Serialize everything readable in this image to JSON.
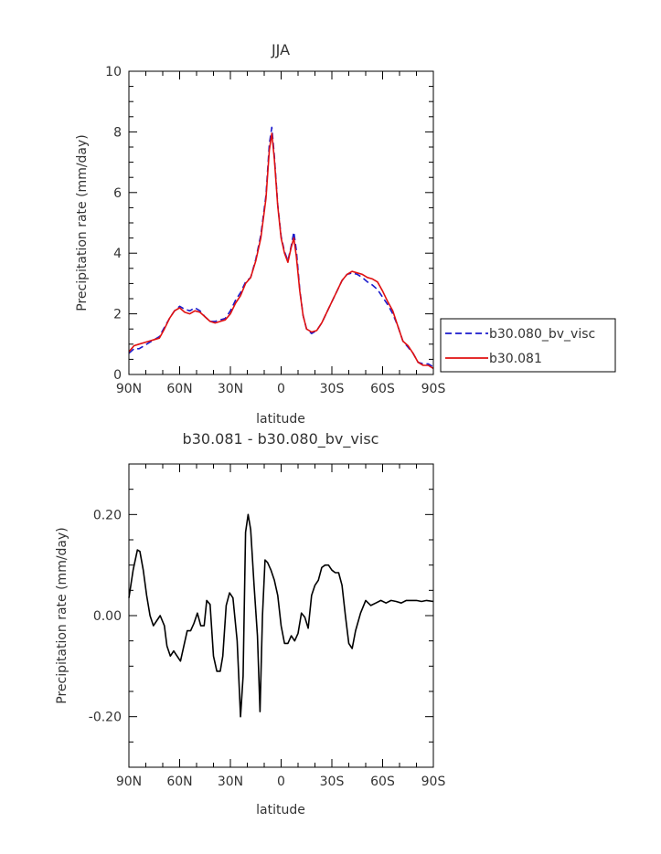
{
  "chart_data": [
    {
      "type": "line",
      "title": "JJA",
      "xlabel": "latitude",
      "ylabel": "Precipitation rate (mm/day)",
      "xlim": [
        90,
        -90
      ],
      "ylim": [
        0,
        10
      ],
      "xticks": [
        90,
        60,
        30,
        0,
        -30,
        -60,
        -90
      ],
      "xticklabels": [
        "90N",
        "60N",
        "30N",
        "0",
        "30S",
        "60S",
        "90S"
      ],
      "yticks": [
        0,
        2,
        4,
        6,
        8,
        10
      ],
      "yticklabels": [
        "0",
        "2",
        "4",
        "6",
        "8",
        "10"
      ],
      "legend_position": "right",
      "series": [
        {
          "name": "b30.080_bv_visc",
          "color": "#1a1acc",
          "dash": "dashed",
          "points": [
            [
              90,
              0.7
            ],
            [
              87,
              0.85
            ],
            [
              84,
              0.85
            ],
            [
              81,
              0.95
            ],
            [
              78,
              1.05
            ],
            [
              75,
              1.15
            ],
            [
              72,
              1.25
            ],
            [
              69,
              1.55
            ],
            [
              66,
              1.85
            ],
            [
              63,
              2.1
            ],
            [
              60,
              2.25
            ],
            [
              57,
              2.15
            ],
            [
              54,
              2.1
            ],
            [
              51,
              2.2
            ],
            [
              48,
              2.1
            ],
            [
              45,
              1.9
            ],
            [
              42,
              1.75
            ],
            [
              39,
              1.75
            ],
            [
              36,
              1.8
            ],
            [
              33,
              1.85
            ],
            [
              30,
              2.1
            ],
            [
              27,
              2.45
            ],
            [
              24,
              2.7
            ],
            [
              21,
              3.05
            ],
            [
              18,
              3.2
            ],
            [
              15,
              3.8
            ],
            [
              12,
              4.6
            ],
            [
              9,
              5.9
            ],
            [
              7,
              7.6
            ],
            [
              5.5,
              8.15
            ],
            [
              4,
              7.2
            ],
            [
              2,
              5.6
            ],
            [
              0,
              4.55
            ],
            [
              -2,
              4.05
            ],
            [
              -4,
              3.75
            ],
            [
              -6,
              4.25
            ],
            [
              -7.5,
              4.7
            ],
            [
              -9,
              4.1
            ],
            [
              -11,
              2.8
            ],
            [
              -13,
              1.95
            ],
            [
              -15,
              1.5
            ],
            [
              -18,
              1.35
            ],
            [
              -21,
              1.45
            ],
            [
              -24,
              1.7
            ],
            [
              -27,
              2.05
            ],
            [
              -30,
              2.4
            ],
            [
              -33,
              2.75
            ],
            [
              -36,
              3.1
            ],
            [
              -39,
              3.3
            ],
            [
              -42,
              3.35
            ],
            [
              -45,
              3.3
            ],
            [
              -48,
              3.2
            ],
            [
              -51,
              3.05
            ],
            [
              -54,
              2.95
            ],
            [
              -57,
              2.8
            ],
            [
              -60,
              2.55
            ],
            [
              -63,
              2.3
            ],
            [
              -66,
              2.0
            ],
            [
              -69,
              1.6
            ],
            [
              -72,
              1.1
            ],
            [
              -75,
              0.9
            ],
            [
              -78,
              0.7
            ],
            [
              -81,
              0.4
            ],
            [
              -84,
              0.35
            ],
            [
              -87,
              0.35
            ],
            [
              -90,
              0.25
            ]
          ]
        },
        {
          "name": "b30.081",
          "color": "#e01010",
          "dash": "solid",
          "points": [
            [
              90,
              0.75
            ],
            [
              87,
              0.95
            ],
            [
              84,
              1.0
            ],
            [
              81,
              1.05
            ],
            [
              78,
              1.1
            ],
            [
              75,
              1.15
            ],
            [
              72,
              1.2
            ],
            [
              69,
              1.5
            ],
            [
              66,
              1.85
            ],
            [
              63,
              2.1
            ],
            [
              60,
              2.2
            ],
            [
              57,
              2.05
            ],
            [
              54,
              2.0
            ],
            [
              51,
              2.1
            ],
            [
              48,
              2.05
            ],
            [
              45,
              1.9
            ],
            [
              42,
              1.75
            ],
            [
              39,
              1.7
            ],
            [
              36,
              1.75
            ],
            [
              33,
              1.8
            ],
            [
              30,
              2.0
            ],
            [
              27,
              2.35
            ],
            [
              24,
              2.6
            ],
            [
              21,
              3.0
            ],
            [
              18,
              3.2
            ],
            [
              15,
              3.75
            ],
            [
              12,
              4.5
            ],
            [
              9,
              5.8
            ],
            [
              7,
              7.4
            ],
            [
              5.5,
              7.95
            ],
            [
              4,
              7.1
            ],
            [
              2,
              5.55
            ],
            [
              0,
              4.5
            ],
            [
              -2,
              4.0
            ],
            [
              -4,
              3.7
            ],
            [
              -6,
              4.2
            ],
            [
              -7.5,
              4.5
            ],
            [
              -9,
              3.9
            ],
            [
              -11,
              2.75
            ],
            [
              -13,
              1.95
            ],
            [
              -15,
              1.5
            ],
            [
              -18,
              1.4
            ],
            [
              -21,
              1.45
            ],
            [
              -24,
              1.7
            ],
            [
              -27,
              2.05
            ],
            [
              -30,
              2.4
            ],
            [
              -33,
              2.75
            ],
            [
              -36,
              3.1
            ],
            [
              -39,
              3.3
            ],
            [
              -42,
              3.4
            ],
            [
              -45,
              3.35
            ],
            [
              -48,
              3.3
            ],
            [
              -51,
              3.2
            ],
            [
              -54,
              3.15
            ],
            [
              -57,
              3.05
            ],
            [
              -60,
              2.75
            ],
            [
              -63,
              2.4
            ],
            [
              -66,
              2.1
            ],
            [
              -69,
              1.6
            ],
            [
              -72,
              1.1
            ],
            [
              -75,
              0.95
            ],
            [
              -78,
              0.7
            ],
            [
              -81,
              0.4
            ],
            [
              -84,
              0.3
            ],
            [
              -87,
              0.3
            ],
            [
              -90,
              0.2
            ]
          ]
        }
      ]
    },
    {
      "type": "line",
      "title": "b30.081 - b30.080_bv_visc",
      "xlabel": "latitude",
      "ylabel": "Precipitation rate (mm/day)",
      "xlim": [
        90,
        -90
      ],
      "ylim": [
        -0.3,
        0.3
      ],
      "xticks": [
        90,
        60,
        30,
        0,
        -30,
        -60,
        -90
      ],
      "xticklabels": [
        "90N",
        "60N",
        "30N",
        "0",
        "30S",
        "60S",
        "90S"
      ],
      "yticks": [
        0.2,
        0,
        -0.2
      ],
      "yticklabels": [
        "0.20",
        "0.00",
        "-0.20"
      ],
      "series": [
        {
          "color": "#000000",
          "dash": "solid",
          "points": [
            [
              90,
              0.035
            ],
            [
              87.5,
              0.09
            ],
            [
              85,
              0.13
            ],
            [
              83.5,
              0.127
            ],
            [
              81.5,
              0.09
            ],
            [
              79.5,
              0.04
            ],
            [
              77.5,
              0.0
            ],
            [
              75.5,
              -0.02
            ],
            [
              73.5,
              -0.01
            ],
            [
              71.5,
              0.0
            ],
            [
              69,
              -0.02
            ],
            [
              67.5,
              -0.06
            ],
            [
              65.5,
              -0.08
            ],
            [
              63.5,
              -0.07
            ],
            [
              61.5,
              -0.08
            ],
            [
              59.5,
              -0.09
            ],
            [
              57.5,
              -0.06
            ],
            [
              55.5,
              -0.03
            ],
            [
              53.5,
              -0.03
            ],
            [
              51.5,
              -0.015
            ],
            [
              49.5,
              0.005
            ],
            [
              47.5,
              -0.02
            ],
            [
              45.5,
              -0.02
            ],
            [
              44,
              0.03
            ],
            [
              42,
              0.022
            ],
            [
              40,
              -0.08
            ],
            [
              38,
              -0.11
            ],
            [
              36,
              -0.11
            ],
            [
              34.5,
              -0.08
            ],
            [
              32.5,
              0.02
            ],
            [
              30.5,
              0.045
            ],
            [
              28.5,
              0.035
            ],
            [
              26,
              -0.05
            ],
            [
              24,
              -0.2
            ],
            [
              22.5,
              -0.12
            ],
            [
              21,
              0.165
            ],
            [
              19.5,
              0.2
            ],
            [
              18,
              0.17
            ],
            [
              16,
              0.06
            ],
            [
              14,
              -0.04
            ],
            [
              12.5,
              -0.19
            ],
            [
              11,
              0.0
            ],
            [
              9.5,
              0.11
            ],
            [
              8,
              0.105
            ],
            [
              6,
              0.09
            ],
            [
              4,
              0.07
            ],
            [
              2,
              0.04
            ],
            [
              0,
              -0.02
            ],
            [
              -2,
              -0.055
            ],
            [
              -4,
              -0.055
            ],
            [
              -6,
              -0.04
            ],
            [
              -8,
              -0.05
            ],
            [
              -10,
              -0.035
            ],
            [
              -12,
              0.005
            ],
            [
              -14,
              -0.003
            ],
            [
              -16,
              -0.025
            ],
            [
              -18,
              0.04
            ],
            [
              -20,
              0.06
            ],
            [
              -22,
              0.07
            ],
            [
              -24,
              0.095
            ],
            [
              -26,
              0.1
            ],
            [
              -28,
              0.1
            ],
            [
              -30,
              0.09
            ],
            [
              -32,
              0.085
            ],
            [
              -34,
              0.085
            ],
            [
              -36,
              0.06
            ],
            [
              -38,
              0.0
            ],
            [
              -40,
              -0.055
            ],
            [
              -42,
              -0.065
            ],
            [
              -44,
              -0.03
            ],
            [
              -47,
              0.005
            ],
            [
              -50,
              0.03
            ],
            [
              -53,
              0.02
            ],
            [
              -56,
              0.025
            ],
            [
              -59,
              0.03
            ],
            [
              -62,
              0.025
            ],
            [
              -65,
              0.03
            ],
            [
              -68,
              0.028
            ],
            [
              -71,
              0.025
            ],
            [
              -74,
              0.03
            ],
            [
              -77,
              0.03
            ],
            [
              -80,
              0.03
            ],
            [
              -83,
              0.028
            ],
            [
              -86,
              0.03
            ],
            [
              -90,
              0.028
            ]
          ]
        }
      ]
    }
  ]
}
